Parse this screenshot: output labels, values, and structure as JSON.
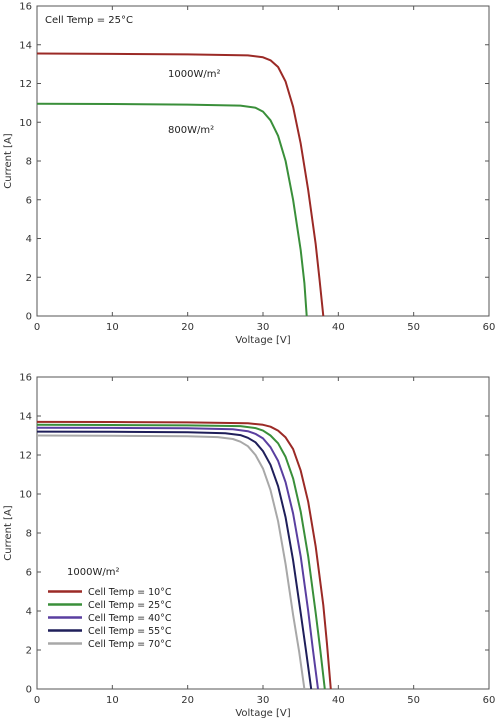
{
  "chart_data": [
    {
      "type": "line",
      "xlabel": "Voltage [V]",
      "ylabel": "Current [A]",
      "xlim": [
        0,
        60
      ],
      "ylim": [
        0,
        16
      ],
      "xticks": [
        0,
        10,
        20,
        30,
        40,
        50,
        60
      ],
      "yticks": [
        0,
        2,
        4,
        6,
        8,
        10,
        12,
        14,
        16
      ],
      "grid": false,
      "annotations": [
        "Cell Temp = 25°C"
      ],
      "series": [
        {
          "name": "1000W/m²",
          "color": "#9b2a26",
          "x": [
            0,
            10,
            20,
            28,
            30,
            31,
            32,
            33,
            34,
            35,
            36,
            37,
            37.5,
            38
          ],
          "y": [
            13.55,
            13.53,
            13.5,
            13.45,
            13.35,
            13.2,
            12.85,
            12.1,
            10.8,
            8.9,
            6.5,
            3.7,
            1.9,
            0
          ]
        },
        {
          "name": "800W/m²",
          "color": "#3a8f3a",
          "x": [
            0,
            10,
            20,
            27,
            29,
            30,
            31,
            32,
            33,
            34,
            35,
            35.5,
            35.8
          ],
          "y": [
            10.95,
            10.94,
            10.91,
            10.86,
            10.75,
            10.55,
            10.1,
            9.3,
            8.0,
            6.0,
            3.4,
            1.7,
            0
          ]
        }
      ]
    },
    {
      "type": "line",
      "xlabel": "Voltage [V]",
      "ylabel": "Current [A]",
      "xlim": [
        0,
        60
      ],
      "ylim": [
        0,
        16
      ],
      "xticks": [
        0,
        10,
        20,
        30,
        40,
        50,
        60
      ],
      "yticks": [
        0,
        2,
        4,
        6,
        8,
        10,
        12,
        14,
        16
      ],
      "grid": false,
      "legend_title": "1000W/m²",
      "legend_position": "bottom-left",
      "series": [
        {
          "name": "Cell Temp = 10°C",
          "color": "#9b2a26",
          "x": [
            0,
            10,
            20,
            28,
            30,
            31,
            32,
            33,
            34,
            35,
            36,
            37,
            38,
            38.5,
            39
          ],
          "y": [
            13.7,
            13.69,
            13.67,
            13.63,
            13.55,
            13.45,
            13.25,
            12.9,
            12.3,
            11.2,
            9.6,
            7.3,
            4.3,
            2.3,
            0
          ]
        },
        {
          "name": "Cell Temp = 25°C",
          "color": "#3a8f3a",
          "x": [
            0,
            10,
            20,
            27,
            29,
            30,
            31,
            32,
            33,
            34,
            35,
            36,
            37,
            37.6,
            38.2
          ],
          "y": [
            13.55,
            13.54,
            13.52,
            13.48,
            13.38,
            13.25,
            13.0,
            12.6,
            11.9,
            10.8,
            9.1,
            6.8,
            3.9,
            2.0,
            0
          ]
        },
        {
          "name": "Cell Temp = 40°C",
          "color": "#5a3fa0",
          "x": [
            0,
            10,
            20,
            26,
            28,
            29,
            30,
            31,
            32,
            33,
            34,
            35,
            36,
            36.6,
            37.3
          ],
          "y": [
            13.4,
            13.39,
            13.37,
            13.32,
            13.22,
            13.08,
            12.85,
            12.4,
            11.7,
            10.6,
            9.0,
            6.8,
            4.0,
            2.1,
            0
          ]
        },
        {
          "name": "Cell Temp = 55°C",
          "color": "#1f1f5a",
          "x": [
            0,
            10,
            20,
            25,
            27,
            28,
            29,
            30,
            31,
            32,
            33,
            34,
            35,
            35.7,
            36.4
          ],
          "y": [
            13.2,
            13.19,
            13.17,
            13.12,
            13.02,
            12.88,
            12.65,
            12.2,
            11.5,
            10.4,
            8.8,
            6.6,
            3.9,
            2.0,
            0
          ]
        },
        {
          "name": "Cell Temp = 70°C",
          "color": "#a8a8a8",
          "x": [
            0,
            10,
            20,
            24,
            26,
            27,
            28,
            29,
            30,
            31,
            32,
            33,
            34,
            34.8,
            35.5
          ],
          "y": [
            13.0,
            12.99,
            12.96,
            12.92,
            12.82,
            12.68,
            12.45,
            12.0,
            11.3,
            10.2,
            8.6,
            6.4,
            3.8,
            1.9,
            0
          ]
        }
      ]
    }
  ]
}
